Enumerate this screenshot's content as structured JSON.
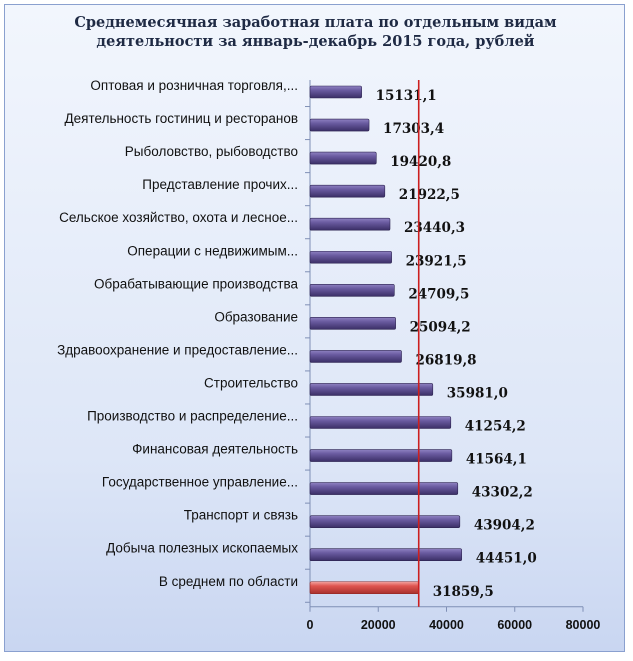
{
  "chart_data": {
    "type": "bar",
    "orientation": "horizontal",
    "title": "Среднемесячная заработная плата по отдельным видам\nдеятельности за январь-декабрь 2015  года, рублей",
    "categories": [
      "Оптовая и розничная торговля,...",
      "Деятельность гостиниц и ресторанов",
      "Рыболовство, рыбоводство",
      "Представление прочих...",
      "Сельское хозяйство, охота и лесное...",
      "Операции с недвижимым...",
      "Обрабатывающие производства",
      "Образование",
      "Здравоохранение и предоставление...",
      "Строительство",
      "Производство и распределение...",
      "Финансовая деятельность",
      "Государственное управление...",
      "Транспорт и связь",
      "Добыча полезных ископаемых",
      "В среднем по области"
    ],
    "values": [
      15131.1,
      17303.4,
      19420.8,
      21922.5,
      23440.3,
      23921.5,
      24709.5,
      25094.2,
      26819.8,
      35981.0,
      41254.2,
      41564.1,
      43302.2,
      43904.2,
      44451.0,
      31859.5
    ],
    "value_labels": [
      "15131,1",
      "17303,4",
      "19420,8",
      "21922,5",
      "23440,3",
      "23921,5",
      "24709,5",
      "25094,2",
      "26819,8",
      "35981,0",
      "41254,2",
      "41564,1",
      "43302,2",
      "43904,2",
      "44451,0",
      "31859,5"
    ],
    "highlight_index": 15,
    "reference_line": 31859.5,
    "xlim": [
      0,
      80000
    ],
    "xticks": [
      0,
      20000,
      40000,
      60000,
      80000
    ],
    "xtick_labels": [
      "0",
      "20000",
      "40000",
      "60000",
      "80000"
    ],
    "xlabel": "",
    "ylabel": "",
    "grid": false,
    "colors": {
      "bar": "#5a4b8c",
      "bar_highlight": "#d9534f",
      "reference_line": "#cc1f1f",
      "frame_border": "#8aa0cf"
    }
  }
}
